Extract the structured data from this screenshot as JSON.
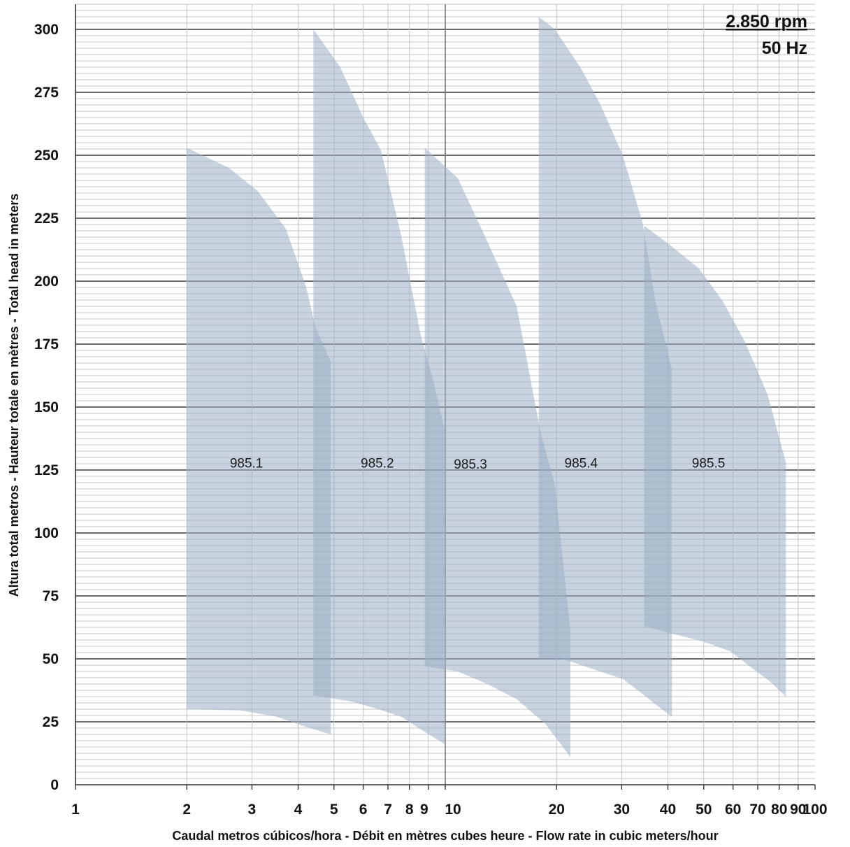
{
  "chart_data": {
    "type": "area",
    "xlabel": "Caudal metros cúbicos/hora - Débit en mètres cubes heure - Flow rate in cubic meters/hour",
    "ylabel": "Altura total metros - Hauteur totale en mètres - Total head in meters",
    "x_scale": "log",
    "xlim": [
      1,
      100
    ],
    "ylim": [
      0,
      310
    ],
    "x_tick_labels": [
      "1",
      "2",
      "3",
      "4",
      "5",
      "6",
      "7",
      "8",
      "9",
      "10",
      "20",
      "30",
      "40",
      "50",
      "60",
      "70",
      "80",
      "90",
      "100"
    ],
    "y_ticks": [
      0,
      25,
      50,
      75,
      100,
      125,
      150,
      175,
      200,
      225,
      250,
      275,
      300
    ],
    "grid": {
      "major_y_step": 25,
      "minor_y_step": 2.5,
      "x_lines": "log decades"
    },
    "speed_label": "2.850 rpm",
    "frequency_label": "50 Hz",
    "zone_color": "#9aaec4",
    "series": [
      {
        "name": "985.1",
        "upper": [
          [
            2.0,
            253
          ],
          [
            2.6,
            245
          ],
          [
            3.1,
            236
          ],
          [
            3.7,
            221
          ],
          [
            4.2,
            198
          ],
          [
            4.45,
            182
          ],
          [
            4.9,
            168
          ]
        ],
        "lower": [
          [
            2.0,
            30
          ],
          [
            2.8,
            29.5
          ],
          [
            3.5,
            27
          ],
          [
            4.2,
            23
          ],
          [
            4.9,
            20
          ]
        ]
      },
      {
        "name": "985.2",
        "upper": [
          [
            4.4,
            300
          ],
          [
            5.2,
            285
          ],
          [
            6.0,
            265
          ],
          [
            6.7,
            252
          ],
          [
            7.6,
            218
          ],
          [
            8.6,
            178
          ],
          [
            9.3,
            160
          ],
          [
            10.0,
            140
          ]
        ],
        "lower": [
          [
            4.4,
            35.5
          ],
          [
            5.6,
            33
          ],
          [
            6.6,
            30
          ],
          [
            7.6,
            27
          ],
          [
            8.8,
            21
          ],
          [
            10.0,
            16
          ]
        ]
      },
      {
        "name": "985.3",
        "upper": [
          [
            8.8,
            253
          ],
          [
            10.8,
            241
          ],
          [
            12.7,
            219
          ],
          [
            15.6,
            190
          ],
          [
            18.1,
            140
          ],
          [
            19.8,
            119
          ],
          [
            21.8,
            61
          ]
        ],
        "lower": [
          [
            8.8,
            47
          ],
          [
            10.8,
            45
          ],
          [
            13.0,
            40
          ],
          [
            15.6,
            34
          ],
          [
            18.7,
            24
          ],
          [
            21.8,
            11
          ]
        ]
      },
      {
        "name": "985.4",
        "upper": [
          [
            17.9,
            305
          ],
          [
            19.8,
            300
          ],
          [
            23.4,
            284
          ],
          [
            26.3,
            270
          ],
          [
            30.2,
            250
          ],
          [
            34.2,
            223
          ],
          [
            37.0,
            192
          ],
          [
            41.0,
            165
          ]
        ],
        "lower": [
          [
            17.9,
            50
          ],
          [
            20.8,
            50
          ],
          [
            25.6,
            45.5
          ],
          [
            30.2,
            42
          ],
          [
            34.2,
            36
          ],
          [
            38.5,
            30
          ],
          [
            41.0,
            27
          ]
        ]
      },
      {
        "name": "985.5",
        "upper": [
          [
            34.5,
            222
          ],
          [
            40.0,
            215
          ],
          [
            48.6,
            205
          ],
          [
            56.3,
            192
          ],
          [
            64.6,
            176
          ],
          [
            74.4,
            155
          ],
          [
            83.4,
            128
          ]
        ],
        "lower": [
          [
            34.5,
            63
          ],
          [
            41.0,
            60
          ],
          [
            49.5,
            57
          ],
          [
            59.0,
            53
          ],
          [
            68.0,
            46
          ],
          [
            75.6,
            41
          ],
          [
            83.4,
            35
          ]
        ]
      }
    ]
  }
}
